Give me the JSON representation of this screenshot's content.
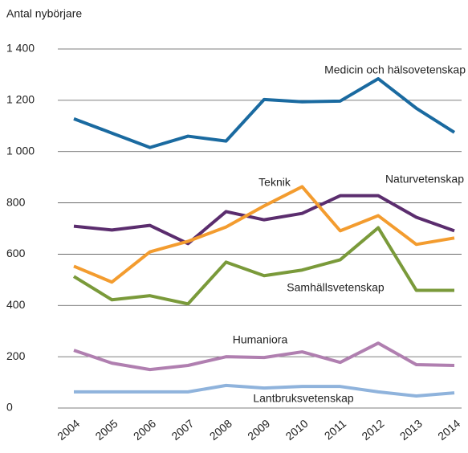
{
  "chart_data": {
    "type": "line",
    "y_axis_label": "Antal nybörjare",
    "x": [
      "2004",
      "2005",
      "2006",
      "2007",
      "2008",
      "2009",
      "2010",
      "2011",
      "2012",
      "2013",
      "2014"
    ],
    "series": [
      {
        "name": "Medicin och hälsovetenskap",
        "color": "#1a6aa0",
        "values": [
          1128,
          1072,
          1016,
          1060,
          1041,
          1203,
          1194,
          1197,
          1284,
          1169,
          1075
        ]
      },
      {
        "name": "Naturvetenskap",
        "color": "#5b2d6e",
        "values": [
          709,
          694,
          712,
          641,
          766,
          734,
          759,
          828,
          828,
          744,
          691
        ]
      },
      {
        "name": "Teknik",
        "color": "#f39c2f",
        "values": [
          553,
          491,
          609,
          650,
          706,
          788,
          863,
          691,
          750,
          638,
          663
        ]
      },
      {
        "name": "Samhällsvetenskap",
        "color": "#7a9a3a",
        "values": [
          513,
          422,
          438,
          406,
          569,
          516,
          538,
          578,
          703,
          459,
          459
        ]
      },
      {
        "name": "Humaniora",
        "color": "#b07fb0",
        "values": [
          225,
          175,
          150,
          166,
          200,
          197,
          219,
          178,
          253,
          169,
          166
        ]
      },
      {
        "name": "Lantbruksvetenskap",
        "color": "#8fb3dc",
        "values": [
          63,
          63,
          63,
          63,
          88,
          78,
          84,
          84,
          63,
          47,
          59
        ]
      }
    ],
    "ylim": [
      0,
      1400
    ],
    "yticks": [
      0,
      200,
      400,
      600,
      800,
      {
        "value": 1000,
        "label": "1 000"
      },
      {
        "value": 1200,
        "label": "1 200"
      },
      {
        "value": 1400,
        "label": "1 400"
      }
    ],
    "grid": true
  }
}
